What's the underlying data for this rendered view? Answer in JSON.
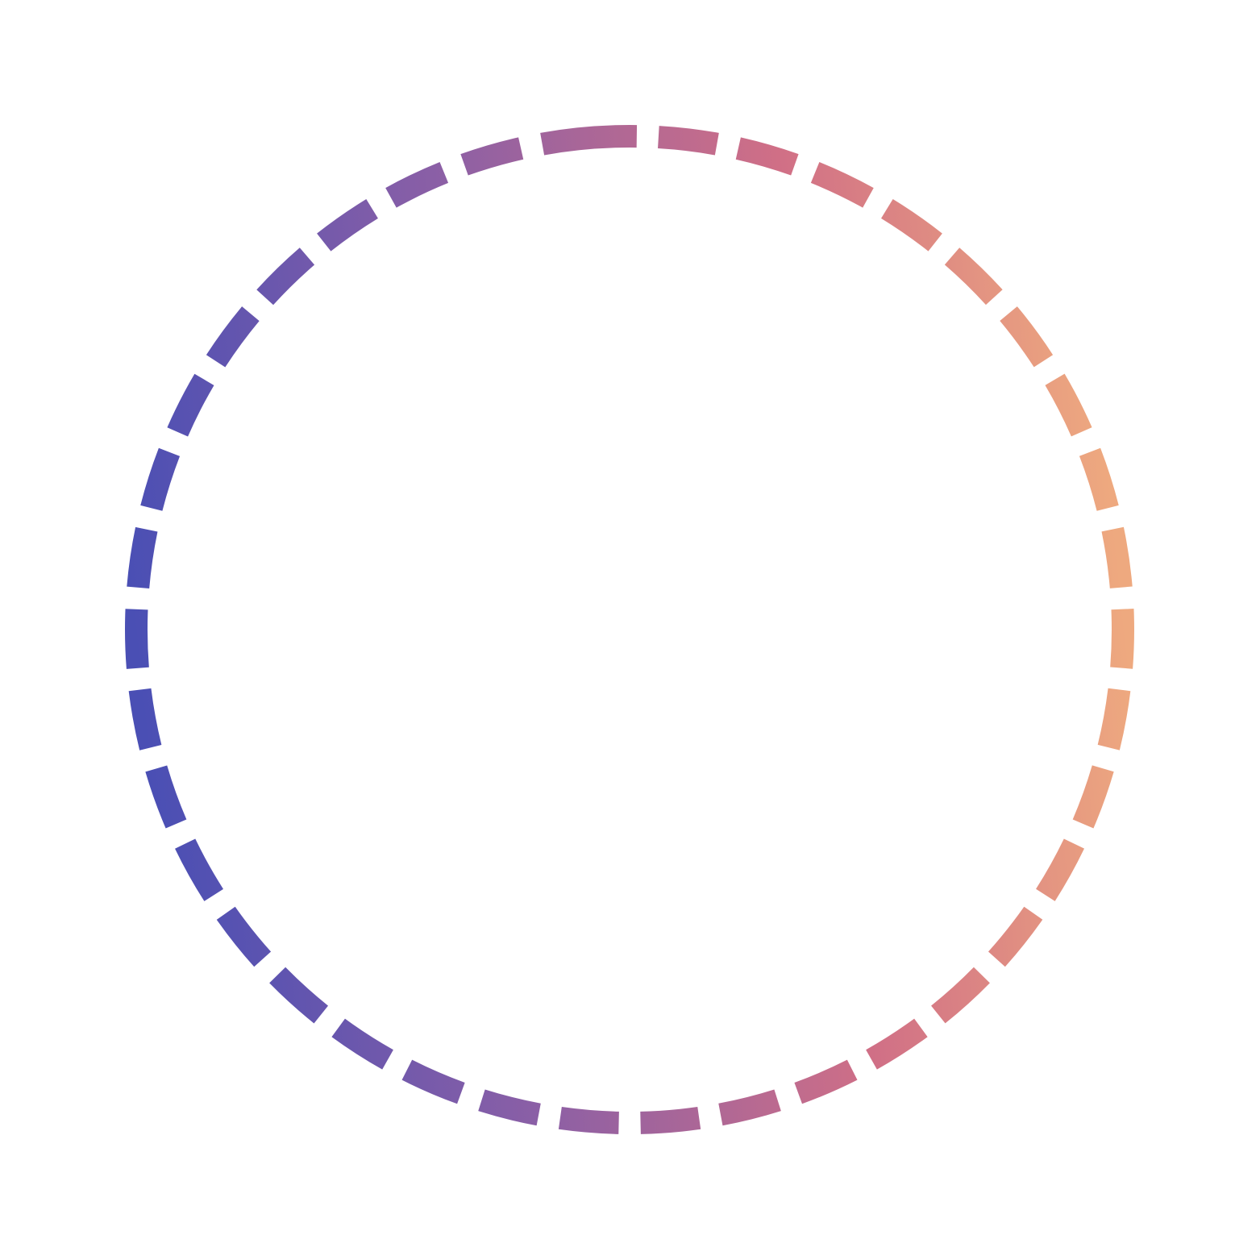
{
  "ring": {
    "shape": "dashed-circle",
    "gradient_colors": [
      "#4a4fb4",
      "#8a5fa6",
      "#d06f86",
      "#eea97f"
    ]
  }
}
